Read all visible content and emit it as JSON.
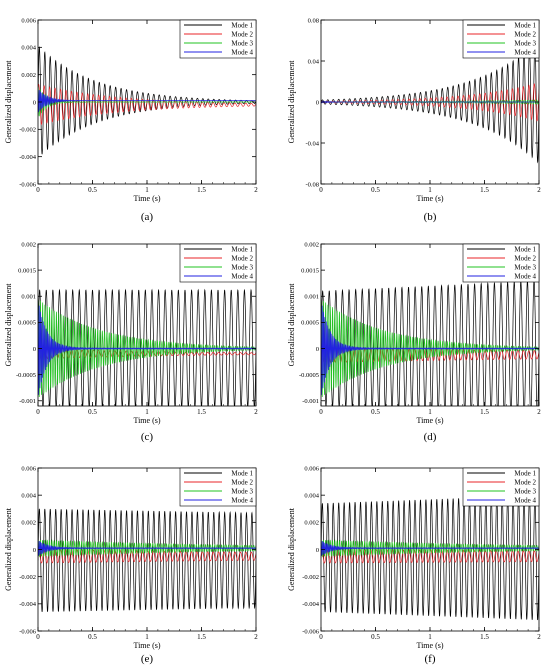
{
  "chart_data": [
    {
      "type": "line",
      "panel_label": "(a)",
      "xlabel": "Time (s)",
      "ylabel": "Generalized displacement",
      "xlim": [
        0,
        2
      ],
      "ylim": [
        -0.006,
        0.006
      ],
      "xticks": [
        0,
        0.5,
        1,
        1.5,
        2
      ],
      "xtick_labels": [
        "0",
        "0.5",
        "1",
        "1.5",
        "2"
      ],
      "yticks": [
        -0.006,
        -0.004,
        -0.002,
        0,
        0.002,
        0.004,
        0.006
      ],
      "ytick_labels": [
        "-0.006",
        "-0.004",
        "-0.002",
        "0",
        "0.002",
        "0.004",
        "0.006"
      ],
      "legend": "top-right",
      "series": [
        {
          "name": "Mode 1",
          "color": "#000000",
          "amp_start": 0.0041,
          "amp_end": 0.0001,
          "growth": "exp",
          "offset": 0,
          "cycles": 40
        },
        {
          "name": "Mode 2",
          "color": "#e8262a",
          "amp_start": 0.0015,
          "amp_end": 0.0001,
          "growth": "exp",
          "offset": -0.0002,
          "cycles": 40
        },
        {
          "name": "Mode 3",
          "color": "#22c322",
          "amp_start": 0.0012,
          "amp_end": 1e-05,
          "growth": "fast",
          "offset": 0,
          "cycles": 95
        },
        {
          "name": "Mode 4",
          "color": "#2222e0",
          "amp_start": 0.0009,
          "amp_end": 1e-05,
          "growth": "fast",
          "offset": 0.0001,
          "cycles": 160
        }
      ]
    },
    {
      "type": "line",
      "panel_label": "(b)",
      "xlabel": "Time (s)",
      "ylabel": "Generalized displacement",
      "xlim": [
        0,
        2
      ],
      "ylim": [
        -0.08,
        0.08
      ],
      "xticks": [
        0,
        0.5,
        1,
        1.5,
        2
      ],
      "xtick_labels": [
        "0",
        "0.5",
        "1",
        "1.5",
        "2"
      ],
      "yticks": [
        -0.08,
        -0.04,
        0,
        0.04,
        0.08
      ],
      "ytick_labels": [
        "-0.08",
        "-0.04",
        "0",
        "0.04",
        "0.08"
      ],
      "legend": "top-right",
      "series": [
        {
          "name": "Mode 1",
          "color": "#000000",
          "amp_start": 0.002,
          "amp_end": 0.06,
          "growth": "exp",
          "offset": 0,
          "cycles": 40
        },
        {
          "name": "Mode 2",
          "color": "#e8262a",
          "amp_start": 0.0008,
          "amp_end": 0.019,
          "growth": "exp",
          "offset": 0,
          "cycles": 40
        },
        {
          "name": "Mode 3",
          "color": "#22c322",
          "amp_start": 0.0003,
          "amp_end": 0.002,
          "growth": "exp",
          "offset": 0,
          "cycles": 95
        },
        {
          "name": "Mode 4",
          "color": "#2222e0",
          "amp_start": 0.001,
          "amp_end": 0.0001,
          "growth": "fast",
          "offset": 0,
          "cycles": 160
        }
      ]
    },
    {
      "type": "line",
      "panel_label": "(c)",
      "xlabel": "Time (s)",
      "ylabel": "Generalized displacement",
      "xlim": [
        0,
        2
      ],
      "ylim": [
        -0.0011,
        0.002
      ],
      "xticks": [
        0,
        0.5,
        1,
        1.5,
        2
      ],
      "xtick_labels": [
        "0",
        "0.5",
        "1",
        "1.5",
        "2"
      ],
      "yticks": [
        -0.001,
        -0.0005,
        0,
        0.0005,
        0.001,
        0.0015,
        0.002
      ],
      "ytick_labels": [
        "-0.001",
        "-0.0005",
        "0",
        "0.0005",
        "0.001",
        "0.0015",
        "0.002"
      ],
      "legend": "top-right",
      "series": [
        {
          "name": "Mode 1",
          "color": "#000000",
          "amp_start": 0.00112,
          "amp_end": 0.00112,
          "growth": "exp",
          "offset": 0,
          "cycles": 33
        },
        {
          "name": "Mode 2",
          "color": "#e8262a",
          "amp_start": 0.0001,
          "amp_end": 2e-05,
          "growth": "exp",
          "offset": -0.0001,
          "cycles": 40
        },
        {
          "name": "Mode 3",
          "color": "#22c322",
          "amp_start": 0.00095,
          "amp_end": 3e-05,
          "growth": "exp",
          "offset": 0,
          "cycles": 95
        },
        {
          "name": "Mode 4",
          "color": "#2222e0",
          "amp_start": 0.00095,
          "amp_end": 1e-05,
          "growth": "fast",
          "offset": 0,
          "cycles": 160
        }
      ]
    },
    {
      "type": "line",
      "panel_label": "(d)",
      "xlabel": "Time (s)",
      "ylabel": "Generalized displacement",
      "xlim": [
        0,
        2
      ],
      "ylim": [
        -0.0011,
        0.002
      ],
      "xticks": [
        0,
        0.5,
        1,
        1.5,
        2
      ],
      "xtick_labels": [
        "0",
        "0.5",
        "1",
        "1.5",
        "2"
      ],
      "yticks": [
        -0.001,
        -0.0005,
        0,
        0.0005,
        0.001,
        0.0015,
        0.002
      ],
      "ytick_labels": [
        "-0.001",
        "-0.0005",
        "0",
        "0.0005",
        "0.001",
        "0.0015",
        "0.002"
      ],
      "legend": "top-right",
      "series": [
        {
          "name": "Mode 1",
          "color": "#000000",
          "amp_start": 0.0011,
          "amp_end": 0.0013,
          "growth": "exp",
          "offset": 0,
          "cycles": 33
        },
        {
          "name": "Mode 2",
          "color": "#e8262a",
          "amp_start": 0.00015,
          "amp_end": 8e-05,
          "growth": "exp",
          "offset": -0.00012,
          "cycles": 40
        },
        {
          "name": "Mode 3",
          "color": "#22c322",
          "amp_start": 0.00095,
          "amp_end": 3e-05,
          "growth": "exp",
          "offset": 0,
          "cycles": 95
        },
        {
          "name": "Mode 4",
          "color": "#2222e0",
          "amp_start": 0.00095,
          "amp_end": 1e-05,
          "growth": "fast",
          "offset": 0,
          "cycles": 160
        }
      ]
    },
    {
      "type": "line",
      "panel_label": "(e)",
      "xlabel": "Time (s)",
      "ylabel": "Generalized displacement",
      "xlim": [
        0,
        2
      ],
      "ylim": [
        -0.006,
        0.006
      ],
      "xticks": [
        0,
        0.5,
        1,
        1.5,
        2
      ],
      "xtick_labels": [
        "0",
        "0.5",
        "1",
        "1.5",
        "2"
      ],
      "yticks": [
        -0.006,
        -0.004,
        -0.002,
        0,
        0.002,
        0.004,
        0.006
      ],
      "ytick_labels": [
        "-0.006",
        "-0.004",
        "-0.002",
        "0",
        "0.002",
        "0.004",
        "0.006"
      ],
      "legend": "top-right",
      "series": [
        {
          "name": "Mode 1",
          "color": "#000000",
          "amp_start": 0.0038,
          "amp_end": 0.0035,
          "growth": "exp",
          "offset": -0.0008,
          "cycles": 40
        },
        {
          "name": "Mode 2",
          "color": "#e8262a",
          "amp_start": 0.0005,
          "amp_end": 0.0003,
          "growth": "exp",
          "offset": -0.0005,
          "cycles": 40
        },
        {
          "name": "Mode 3",
          "color": "#22c322",
          "amp_start": 0.0006,
          "amp_end": 0.0002,
          "growth": "exp",
          "offset": 0.0001,
          "cycles": 95
        },
        {
          "name": "Mode 4",
          "color": "#2222e0",
          "amp_start": 0.0006,
          "amp_end": 3e-05,
          "growth": "fast",
          "offset": 0.0001,
          "cycles": 160
        }
      ]
    },
    {
      "type": "line",
      "panel_label": "(f)",
      "xlabel": "Time (s)",
      "ylabel": "Generalized displacement",
      "xlim": [
        0,
        2
      ],
      "ylim": [
        -0.006,
        0.006
      ],
      "xticks": [
        0,
        0.5,
        1,
        1.5,
        2
      ],
      "xtick_labels": [
        "0",
        "0.5",
        "1",
        "1.5",
        "2"
      ],
      "yticks": [
        -0.006,
        -0.004,
        -0.002,
        0,
        0.002,
        0.004,
        0.006
      ],
      "ytick_labels": [
        "-0.006",
        "-0.004",
        "-0.002",
        "0",
        "0.002",
        "0.004",
        "0.006"
      ],
      "legend": "top-right",
      "series": [
        {
          "name": "Mode 1",
          "color": "#000000",
          "amp_start": 0.004,
          "amp_end": 0.0046,
          "growth": "exp",
          "offset": -0.0006,
          "cycles": 40
        },
        {
          "name": "Mode 2",
          "color": "#e8262a",
          "amp_start": 0.0005,
          "amp_end": 0.0004,
          "growth": "exp",
          "offset": -0.0005,
          "cycles": 40
        },
        {
          "name": "Mode 3",
          "color": "#22c322",
          "amp_start": 0.0006,
          "amp_end": 0.0002,
          "growth": "exp",
          "offset": 0.0001,
          "cycles": 95
        },
        {
          "name": "Mode 4",
          "color": "#2222e0",
          "amp_start": 0.0006,
          "amp_end": 3e-05,
          "growth": "fast",
          "offset": 0.0001,
          "cycles": 160
        }
      ]
    }
  ]
}
